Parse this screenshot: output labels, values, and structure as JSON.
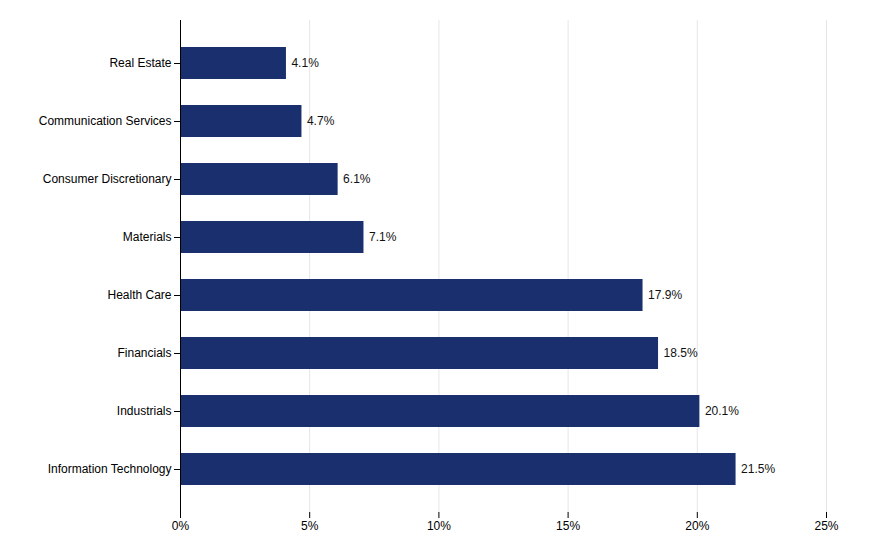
{
  "chart_data": {
    "type": "bar",
    "orientation": "horizontal",
    "categories": [
      "Real Estate",
      "Communication Services",
      "Consumer Discretionary",
      "Materials",
      "Health Care",
      "Financials",
      "Industrials",
      "Information Technology"
    ],
    "values": [
      4.1,
      4.7,
      6.1,
      7.1,
      17.9,
      18.5,
      20.1,
      21.5
    ],
    "value_labels": [
      "4.1%",
      "4.7%",
      "6.1%",
      "7.1%",
      "17.9%",
      "18.5%",
      "20.1%",
      "21.5%"
    ],
    "data_labels": true,
    "color": "#1a2f6e",
    "xlim": [
      0,
      25
    ],
    "xticks": [
      {
        "value": 0,
        "label": "0%"
      },
      {
        "value": 5,
        "label": "5%"
      },
      {
        "value": 10,
        "label": "10%"
      },
      {
        "value": 15,
        "label": "15%"
      },
      {
        "value": 20,
        "label": "20%"
      },
      {
        "value": 25,
        "label": "25%"
      }
    ],
    "grid": true
  }
}
